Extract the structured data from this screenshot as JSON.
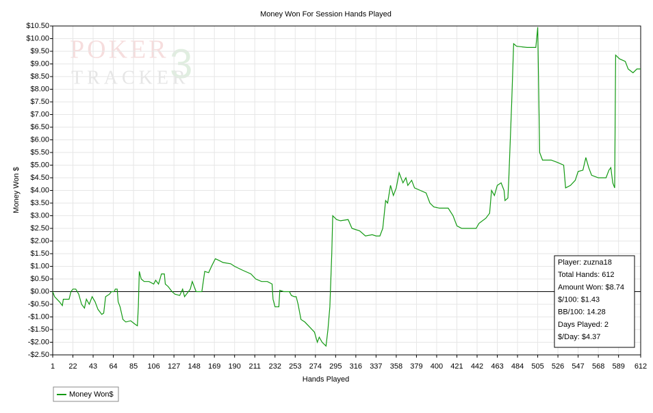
{
  "chart_data": {
    "type": "line",
    "title": "Money Won For Session Hands Played",
    "x_label": "Hands Played",
    "y_label": "Money Won $",
    "watermark": [
      "POKER",
      "TRACKER",
      "3"
    ],
    "info_box": [
      "Player: zuzna18",
      "Total Hands: 612",
      "Amount Won: $8.74",
      "$/100: $1.43",
      "BB/100: 14.28",
      "Days Played: 2",
      "$/Day: $4.37"
    ],
    "legend": "bottom-left",
    "grid": true,
    "xlim": [
      1,
      612
    ],
    "xticks": [
      1,
      22,
      43,
      64,
      85,
      106,
      127,
      148,
      169,
      190,
      211,
      232,
      253,
      274,
      295,
      316,
      337,
      358,
      379,
      400,
      421,
      442,
      463,
      484,
      505,
      526,
      547,
      568,
      589,
      612
    ],
    "ylim": [
      -2.5,
      10.5
    ],
    "yticks": [
      {
        "value": 10.5,
        "label": "$10.50"
      },
      {
        "value": 10,
        "label": "$10.00"
      },
      {
        "value": 9.5,
        "label": "$9.50"
      },
      {
        "value": 9,
        "label": "$9.00"
      },
      {
        "value": 8.5,
        "label": "$8.50"
      },
      {
        "value": 8,
        "label": "$8.00"
      },
      {
        "value": 7.5,
        "label": "$7.50"
      },
      {
        "value": 7,
        "label": "$7.00"
      },
      {
        "value": 6.5,
        "label": "$6.50"
      },
      {
        "value": 6,
        "label": "$6.00"
      },
      {
        "value": 5.5,
        "label": "$5.50"
      },
      {
        "value": 5,
        "label": "$5.00"
      },
      {
        "value": 4.5,
        "label": "$4.50"
      },
      {
        "value": 4,
        "label": "$4.00"
      },
      {
        "value": 3.5,
        "label": "$3.50"
      },
      {
        "value": 3,
        "label": "$3.00"
      },
      {
        "value": 2.5,
        "label": "$2.50"
      },
      {
        "value": 2,
        "label": "$2.00"
      },
      {
        "value": 1.5,
        "label": "$1.50"
      },
      {
        "value": 1,
        "label": "$1.00"
      },
      {
        "value": 0.5,
        "label": "$0.50"
      },
      {
        "value": 0,
        "label": "$0.00"
      },
      {
        "value": -0.5,
        "label": "-$0.50"
      },
      {
        "value": -1,
        "label": "-$1.00"
      },
      {
        "value": -1.5,
        "label": "-$1.50"
      },
      {
        "value": -2,
        "label": "-$2.00"
      },
      {
        "value": -2.5,
        "label": "-$2.50"
      }
    ],
    "x": [
      1,
      3,
      8,
      11,
      12,
      18,
      20,
      22,
      25,
      28,
      31,
      34,
      36,
      39,
      42,
      45,
      48,
      52,
      54,
      56,
      60,
      62,
      65,
      66,
      68,
      69,
      71,
      74,
      77,
      82,
      87,
      89,
      90,
      91,
      93,
      96,
      101,
      106,
      108,
      111,
      114,
      117,
      118,
      121,
      125,
      128,
      133,
      136,
      138,
      144,
      146,
      148,
      150,
      156,
      159,
      163,
      166,
      170,
      173,
      178,
      186,
      190,
      198,
      207,
      212,
      218,
      224,
      229,
      230,
      232,
      236,
      237,
      241,
      247,
      249,
      252,
      254,
      256,
      259,
      263,
      268,
      273,
      276,
      278,
      281,
      285,
      287,
      289,
      291,
      292,
      296,
      300,
      308,
      312,
      320,
      326,
      333,
      337,
      341,
      344,
      347,
      349,
      352,
      355,
      358,
      361,
      365,
      368,
      370,
      374,
      377,
      383,
      389,
      393,
      397,
      403,
      412,
      417,
      421,
      426,
      441,
      444,
      451,
      455,
      457,
      460,
      463,
      467,
      470,
      471,
      474,
      475,
      478,
      480,
      483,
      494,
      503,
      505,
      506,
      507,
      510,
      519,
      526,
      532,
      534,
      539,
      544,
      547,
      552,
      555,
      558,
      561,
      568,
      576,
      579,
      581,
      583,
      585,
      586,
      590,
      596,
      599,
      604,
      608,
      612
    ],
    "series": [
      {
        "name": "Money Won$",
        "color": "#119911",
        "values": [
          0,
          -0.2,
          -0.4,
          -0.55,
          -0.3,
          -0.3,
          0,
          0.1,
          0.1,
          -0.1,
          -0.5,
          -0.65,
          -0.3,
          -0.5,
          -0.2,
          -0.4,
          -0.7,
          -0.9,
          -0.85,
          -0.2,
          -0.1,
          0,
          0,
          0.1,
          0.1,
          -0.4,
          -0.6,
          -1.1,
          -1.2,
          -1.15,
          -1.3,
          -1.35,
          -0.6,
          0.8,
          0.5,
          0.4,
          0.4,
          0.3,
          0.45,
          0.3,
          0.7,
          0.7,
          0.3,
          0.2,
          0,
          -0.1,
          -0.15,
          0.1,
          -0.2,
          0.1,
          0.4,
          0.2,
          0,
          0,
          0.8,
          0.75,
          1.0,
          1.3,
          1.25,
          1.15,
          1.1,
          1.0,
          0.85,
          0.7,
          0.5,
          0.4,
          0.4,
          0.3,
          -0.3,
          -0.6,
          -0.6,
          0.05,
          0,
          0,
          -0.15,
          -0.2,
          -0.2,
          -0.5,
          -1.1,
          -1.2,
          -1.4,
          -1.6,
          -2.0,
          -1.8,
          -2.0,
          -2.15,
          -1.5,
          -0.6,
          1.5,
          3.0,
          2.85,
          2.8,
          2.85,
          2.5,
          2.4,
          2.2,
          2.25,
          2.2,
          2.2,
          2.5,
          3.6,
          3.5,
          4.2,
          3.8,
          4.1,
          4.7,
          4.3,
          4.5,
          4.2,
          4.4,
          4.1,
          4.0,
          3.9,
          3.5,
          3.35,
          3.3,
          3.3,
          3.0,
          2.6,
          2.5,
          2.5,
          2.7,
          2.9,
          3.1,
          4.0,
          3.8,
          4.2,
          4.3,
          4.0,
          3.6,
          3.7,
          4.5,
          7.5,
          9.8,
          9.7,
          9.65,
          9.65,
          10.45,
          8.0,
          5.5,
          5.2,
          5.2,
          5.1,
          5.0,
          4.1,
          4.2,
          4.4,
          4.75,
          4.8,
          5.3,
          4.9,
          4.6,
          4.5,
          4.5,
          4.8,
          4.9,
          4.3,
          4.1,
          9.35,
          9.2,
          9.1,
          8.8,
          8.65,
          8.8,
          8.8
        ]
      }
    ]
  }
}
